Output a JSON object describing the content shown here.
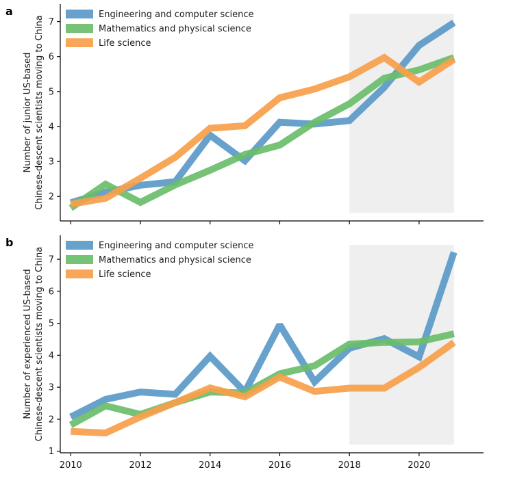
{
  "chart_data": [
    {
      "type": "line",
      "panel_label": "a",
      "ylabel_lines": [
        "Number of junior US-based",
        "Chinese-descent scientists moving to China"
      ],
      "x": [
        2010,
        2011,
        2012,
        2013,
        2014,
        2015,
        2016,
        2017,
        2018,
        2019,
        2020,
        2021
      ],
      "ylim": [
        1.3,
        7.5
      ],
      "yticks": [
        2,
        3,
        4,
        5,
        6,
        7
      ],
      "xticks": [
        2010,
        2012,
        2014,
        2016,
        2018,
        2020
      ],
      "show_xtick_labels": false,
      "shaded_range": [
        2018,
        2021
      ],
      "legend_position": "top-left",
      "series": [
        {
          "name": "Engineering and computer science",
          "color": "#5b9ac8",
          "values": [
            1.82,
            2.12,
            2.32,
            2.42,
            3.75,
            3.02,
            4.12,
            4.07,
            4.17,
            5.12,
            6.32,
            6.97
          ]
        },
        {
          "name": "Mathematics and physical science",
          "color": "#6abd6a",
          "values": [
            1.67,
            2.35,
            1.83,
            2.33,
            2.75,
            3.2,
            3.47,
            4.12,
            4.65,
            5.38,
            5.62,
            5.97
          ]
        },
        {
          "name": "Life science",
          "color": "#f7a04a",
          "values": [
            1.78,
            1.95,
            2.52,
            3.12,
            3.95,
            4.02,
            4.82,
            5.07,
            5.42,
            5.97,
            5.27,
            5.92
          ]
        }
      ]
    },
    {
      "type": "line",
      "panel_label": "b",
      "ylabel_lines": [
        "Number of experienced US-based",
        "Chinese-descent scientists moving to China"
      ],
      "x": [
        2010,
        2011,
        2012,
        2013,
        2014,
        2015,
        2016,
        2017,
        2018,
        2019,
        2020,
        2021
      ],
      "ylim": [
        0.95,
        7.75
      ],
      "yticks": [
        1,
        2,
        3,
        4,
        5,
        6,
        7
      ],
      "xticks": [
        2010,
        2012,
        2014,
        2016,
        2018,
        2020
      ],
      "show_xtick_labels": true,
      "shaded_range": [
        2018,
        2021
      ],
      "legend_position": "top-left",
      "series": [
        {
          "name": "Engineering and computer science",
          "color": "#5b9ac8",
          "values": [
            2.07,
            2.62,
            2.85,
            2.78,
            3.97,
            2.85,
            4.95,
            3.17,
            4.22,
            4.52,
            3.95,
            7.22
          ]
        },
        {
          "name": "Mathematics and physical science",
          "color": "#6abd6a",
          "values": [
            1.82,
            2.42,
            2.15,
            2.52,
            2.85,
            2.82,
            3.42,
            3.67,
            4.35,
            4.4,
            4.42,
            4.67
          ]
        },
        {
          "name": "Life science",
          "color": "#f7a04a",
          "values": [
            1.62,
            1.57,
            2.07,
            2.52,
            2.98,
            2.7,
            3.32,
            2.87,
            2.97,
            2.97,
            3.62,
            4.4
          ]
        }
      ]
    }
  ]
}
